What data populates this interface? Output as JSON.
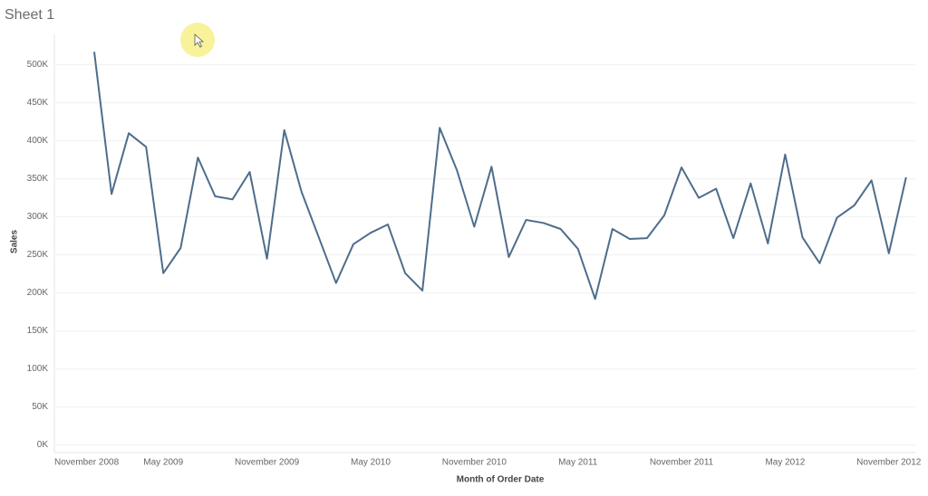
{
  "chart_data": {
    "type": "line",
    "title": "Sheet 1",
    "x_label": "Month of Order Date",
    "y_label": "Sales",
    "x": [
      "2009-01",
      "2009-02",
      "2009-03",
      "2009-04",
      "2009-05",
      "2009-06",
      "2009-07",
      "2009-08",
      "2009-09",
      "2009-10",
      "2009-11",
      "2009-12",
      "2010-01",
      "2010-02",
      "2010-03",
      "2010-04",
      "2010-05",
      "2010-06",
      "2010-07",
      "2010-08",
      "2010-09",
      "2010-10",
      "2010-11",
      "2010-12",
      "2011-01",
      "2011-02",
      "2011-03",
      "2011-04",
      "2011-05",
      "2011-06",
      "2011-07",
      "2011-08",
      "2011-09",
      "2011-10",
      "2011-11",
      "2011-12",
      "2012-01",
      "2012-02",
      "2012-03",
      "2012-04",
      "2012-05",
      "2012-06",
      "2012-07",
      "2012-08",
      "2012-09",
      "2012-10",
      "2012-11",
      "2012-12"
    ],
    "series": [
      {
        "name": "Sales",
        "color": "#4e6d8c",
        "values": [
          517000,
          330000,
          410000,
          392000,
          226000,
          259000,
          378000,
          327000,
          323000,
          359000,
          245000,
          414000,
          333000,
          273000,
          213000,
          264000,
          279000,
          290000,
          226000,
          203000,
          417000,
          361000,
          287000,
          366000,
          247000,
          296000,
          292000,
          284000,
          258000,
          192000,
          284000,
          271000,
          272000,
          302000,
          365000,
          325000,
          337000,
          272000,
          344000,
          265000,
          382000,
          273000,
          239000,
          299000,
          315000,
          348000,
          252000,
          352000
        ]
      }
    ],
    "xticks": [
      {
        "value": "2008-11",
        "label": "November 2008"
      },
      {
        "value": "2009-05",
        "label": "May 2009"
      },
      {
        "value": "2009-11",
        "label": "November 2009"
      },
      {
        "value": "2010-05",
        "label": "May 2010"
      },
      {
        "value": "2010-11",
        "label": "November 2010"
      },
      {
        "value": "2011-05",
        "label": "May 2011"
      },
      {
        "value": "2011-11",
        "label": "November 2011"
      },
      {
        "value": "2012-05",
        "label": "May 2012"
      },
      {
        "value": "2012-11",
        "label": "November 2012"
      }
    ],
    "ylim": [
      -10000,
      540000
    ],
    "yticks": [
      {
        "value": 0,
        "label": "0K"
      },
      {
        "value": 50000,
        "label": "50K"
      },
      {
        "value": 100000,
        "label": "100K"
      },
      {
        "value": 150000,
        "label": "150K"
      },
      {
        "value": 200000,
        "label": "200K"
      },
      {
        "value": 250000,
        "label": "250K"
      },
      {
        "value": 300000,
        "label": "300K"
      },
      {
        "value": 350000,
        "label": "350K"
      },
      {
        "value": 400000,
        "label": "400K"
      },
      {
        "value": 450000,
        "label": "450K"
      },
      {
        "value": 500000,
        "label": "500K"
      }
    ],
    "grid": true
  }
}
